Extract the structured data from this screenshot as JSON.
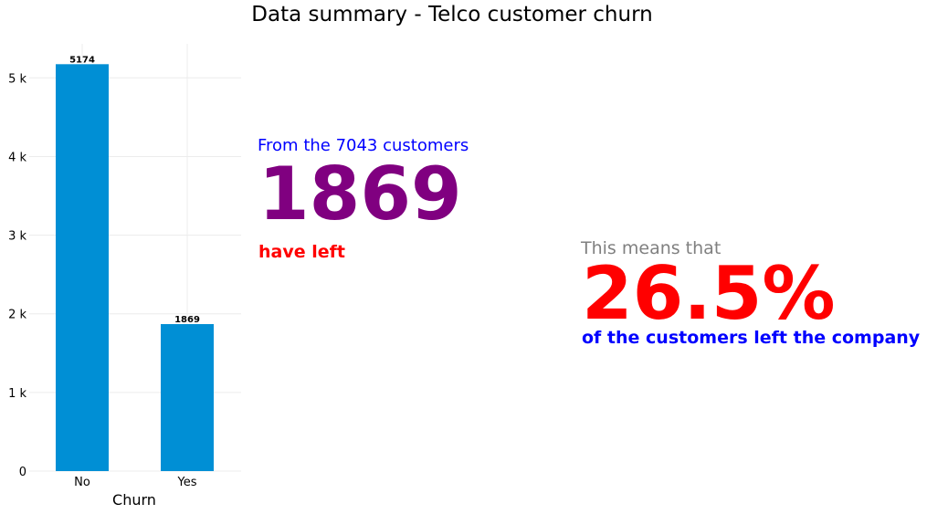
{
  "title": "Data summary - Telco customer churn",
  "chart_data": {
    "type": "bar",
    "categories": [
      "No",
      "Yes"
    ],
    "values": [
      5174,
      1869
    ],
    "data_labels": [
      "5174",
      "1869"
    ],
    "xlabel": "Churn",
    "ylabel": "",
    "ylim": [
      0,
      5433
    ],
    "y_ticks": [
      0,
      1000,
      2000,
      3000,
      4000,
      5000
    ],
    "y_tick_labels": [
      "0",
      "1 k",
      "2 k",
      "3 k",
      "4 k",
      "5 k"
    ],
    "grid": true,
    "bar_color": "#008fd5"
  },
  "summary": {
    "from_line": "From the 7043 customers",
    "count": "1869",
    "have_left": "have left",
    "means_line": "This means that",
    "percent": "26.5%",
    "percent_caption": "of the customers left the company"
  },
  "colors": {
    "from_line": "#0000ff",
    "count": "#800080",
    "have_left": "#ff0000",
    "means_line": "#808080",
    "percent": "#ff0000",
    "percent_caption": "#0000ff"
  }
}
